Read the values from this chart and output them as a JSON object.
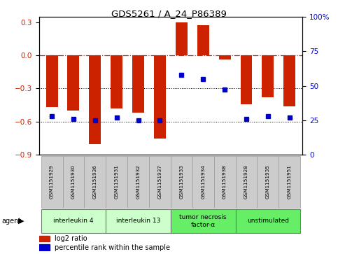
{
  "title": "GDS5261 / A_24_P86389",
  "samples": [
    "GSM1151929",
    "GSM1151930",
    "GSM1151936",
    "GSM1151931",
    "GSM1151932",
    "GSM1151937",
    "GSM1151933",
    "GSM1151934",
    "GSM1151938",
    "GSM1151928",
    "GSM1151935",
    "GSM1151951"
  ],
  "log2_ratio": [
    -0.47,
    -0.5,
    -0.8,
    -0.48,
    -0.52,
    -0.75,
    0.3,
    0.27,
    -0.04,
    -0.44,
    -0.38,
    -0.46
  ],
  "percentile_rank": [
    28,
    26,
    25,
    27,
    25,
    25,
    58,
    55,
    47,
    26,
    28,
    27
  ],
  "ylim_left": [
    -0.9,
    0.35
  ],
  "ylim_right": [
    0,
    100
  ],
  "yticks_left": [
    -0.9,
    -0.6,
    -0.3,
    0,
    0.3
  ],
  "yticks_right": [
    0,
    25,
    50,
    75,
    100
  ],
  "groups": [
    {
      "label": "interleukin 4",
      "start": 0,
      "end": 2,
      "color": "#ccffcc"
    },
    {
      "label": "interleukin 13",
      "start": 3,
      "end": 5,
      "color": "#ccffcc"
    },
    {
      "label": "tumor necrosis\nfactor-α",
      "start": 6,
      "end": 8,
      "color": "#66ee66"
    },
    {
      "label": "unstimulated",
      "start": 9,
      "end": 11,
      "color": "#66ee66"
    }
  ],
  "bar_color": "#cc2200",
  "dot_color": "#0000cc",
  "background_color": "#ffffff",
  "axis_bg": "#ffffff",
  "sample_box_color": "#cccccc",
  "agent_label": "agent",
  "legend_log2": "log2 ratio",
  "legend_pct": "percentile rank within the sample"
}
